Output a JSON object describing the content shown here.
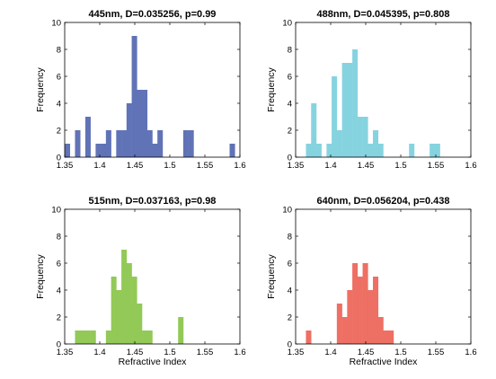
{
  "chart_data": [
    {
      "type": "histogram",
      "title": "445nm, D=0.035256, p=0.99",
      "xlabel": "",
      "ylabel": "Frequency",
      "xlim": [
        1.35,
        1.6
      ],
      "ylim": [
        0,
        10
      ],
      "xticks": [
        "1.35",
        "1.4",
        "1.45",
        "1.5",
        "1.55",
        "1.6"
      ],
      "yticks": [
        "0",
        "2",
        "4",
        "6",
        "8",
        "10"
      ],
      "bin_width": 0.00735,
      "bins": [
        {
          "x0": 1.35,
          "count": 1
        },
        {
          "x0": 1.3647,
          "count": 2
        },
        {
          "x0": 1.3794,
          "count": 3
        },
        {
          "x0": 1.3941,
          "count": 1
        },
        {
          "x0": 1.4014,
          "count": 1
        },
        {
          "x0": 1.4088,
          "count": 2
        },
        {
          "x0": 1.4235,
          "count": 2
        },
        {
          "x0": 1.4309,
          "count": 2
        },
        {
          "x0": 1.4382,
          "count": 4
        },
        {
          "x0": 1.4456,
          "count": 9
        },
        {
          "x0": 1.4529,
          "count": 5
        },
        {
          "x0": 1.4603,
          "count": 5
        },
        {
          "x0": 1.4676,
          "count": 2
        },
        {
          "x0": 1.475,
          "count": 1
        },
        {
          "x0": 1.4823,
          "count": 2
        },
        {
          "x0": 1.5191,
          "count": 2
        },
        {
          "x0": 1.5265,
          "count": 2
        },
        {
          "x0": 1.5853,
          "count": 1
        }
      ],
      "color": "#6073b6"
    },
    {
      "type": "histogram",
      "title": "488nm, D=0.045395, p=0.808",
      "xlabel": "",
      "ylabel": "Frequency",
      "xlim": [
        1.35,
        1.6
      ],
      "ylim": [
        0,
        10
      ],
      "xticks": [
        "1.35",
        "1.4",
        "1.45",
        "1.5",
        "1.55",
        "1.6"
      ],
      "yticks": [
        "0",
        "2",
        "4",
        "6",
        "8",
        "10"
      ],
      "bin_width": 0.00735,
      "bins": [
        {
          "x0": 1.3647,
          "count": 1
        },
        {
          "x0": 1.3721,
          "count": 4
        },
        {
          "x0": 1.3794,
          "count": 1
        },
        {
          "x0": 1.3941,
          "count": 1
        },
        {
          "x0": 1.4014,
          "count": 6
        },
        {
          "x0": 1.4088,
          "count": 2
        },
        {
          "x0": 1.4162,
          "count": 7
        },
        {
          "x0": 1.4235,
          "count": 7
        },
        {
          "x0": 1.4309,
          "count": 8
        },
        {
          "x0": 1.4382,
          "count": 3
        },
        {
          "x0": 1.4456,
          "count": 3
        },
        {
          "x0": 1.4529,
          "count": 1
        },
        {
          "x0": 1.4603,
          "count": 2
        },
        {
          "x0": 1.4676,
          "count": 1
        },
        {
          "x0": 1.5118,
          "count": 1
        },
        {
          "x0": 1.5412,
          "count": 1
        },
        {
          "x0": 1.5485,
          "count": 1
        }
      ],
      "color": "#86d3e0"
    },
    {
      "type": "histogram",
      "title": "515nm, D=0.037163, p=0.98",
      "xlabel": "Refractive Index",
      "ylabel": "Frequency",
      "xlim": [
        1.35,
        1.6
      ],
      "ylim": [
        0,
        10
      ],
      "xticks": [
        "1.35",
        "1.4",
        "1.45",
        "1.5",
        "1.55",
        "1.6"
      ],
      "yticks": [
        "0",
        "2",
        "4",
        "6",
        "8",
        "10"
      ],
      "bin_width": 0.00735,
      "bins": [
        {
          "x0": 1.3647,
          "count": 1
        },
        {
          "x0": 1.3721,
          "count": 1
        },
        {
          "x0": 1.3794,
          "count": 1
        },
        {
          "x0": 1.3868,
          "count": 1
        },
        {
          "x0": 1.4088,
          "count": 1
        },
        {
          "x0": 1.4162,
          "count": 5
        },
        {
          "x0": 1.4235,
          "count": 4
        },
        {
          "x0": 1.4309,
          "count": 7
        },
        {
          "x0": 1.4382,
          "count": 6
        },
        {
          "x0": 1.4456,
          "count": 5
        },
        {
          "x0": 1.4529,
          "count": 3
        },
        {
          "x0": 1.4603,
          "count": 1
        },
        {
          "x0": 1.4676,
          "count": 1
        },
        {
          "x0": 1.5118,
          "count": 2
        }
      ],
      "color": "#92c957"
    },
    {
      "type": "histogram",
      "title": "640nm, D=0.056204, p=0.438",
      "xlabel": "Refractive Index",
      "ylabel": "Frequency",
      "xlim": [
        1.35,
        1.6
      ],
      "ylim": [
        0,
        10
      ],
      "xticks": [
        "1.35",
        "1.4",
        "1.45",
        "1.5",
        "1.55",
        "1.6"
      ],
      "yticks": [
        "0",
        "2",
        "4",
        "6",
        "8",
        "10"
      ],
      "bin_width": 0.00735,
      "bins": [
        {
          "x0": 1.3647,
          "count": 1
        },
        {
          "x0": 1.4088,
          "count": 3
        },
        {
          "x0": 1.4162,
          "count": 2
        },
        {
          "x0": 1.4235,
          "count": 4
        },
        {
          "x0": 1.4309,
          "count": 6
        },
        {
          "x0": 1.4382,
          "count": 5
        },
        {
          "x0": 1.4456,
          "count": 6
        },
        {
          "x0": 1.4529,
          "count": 4
        },
        {
          "x0": 1.4603,
          "count": 5
        },
        {
          "x0": 1.4676,
          "count": 2
        },
        {
          "x0": 1.475,
          "count": 1
        },
        {
          "x0": 1.4823,
          "count": 1
        }
      ],
      "color": "#ee6f63"
    }
  ]
}
